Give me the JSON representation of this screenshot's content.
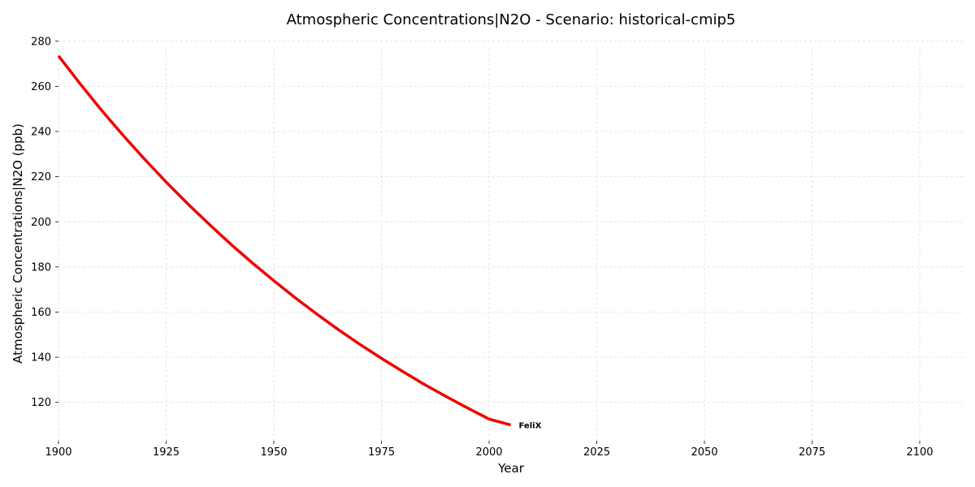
{
  "chart_data": {
    "type": "line",
    "title": "Atmospheric Concentrations|N2O - Scenario: historical-cmip5",
    "xlabel": "Year",
    "ylabel": "Atmospheric Concentrations|N2O (ppb)",
    "xlim": [
      1900,
      2110
    ],
    "ylim": [
      103,
      281
    ],
    "xticks": [
      1900,
      1925,
      1950,
      1975,
      2000,
      2025,
      2050,
      2075,
      2100
    ],
    "yticks": [
      120,
      140,
      160,
      180,
      200,
      220,
      240,
      260,
      280
    ],
    "grid": true,
    "legend": "none",
    "series": [
      {
        "name": "FeliX",
        "color": "#ee0000",
        "x": [
          1900,
          1905,
          1910,
          1915,
          1920,
          1925,
          1930,
          1935,
          1940,
          1945,
          1950,
          1955,
          1960,
          1965,
          1970,
          1975,
          1980,
          1985,
          1990,
          1995,
          2000,
          2005
        ],
        "y": [
          273.5,
          261.2,
          249.4,
          238.3,
          227.7,
          217.6,
          208.0,
          198.9,
          190.1,
          181.8,
          173.9,
          166.3,
          159.1,
          152.2,
          145.7,
          139.5,
          133.6,
          127.9,
          122.6,
          117.5,
          112.6,
          110.0
        ]
      }
    ]
  }
}
